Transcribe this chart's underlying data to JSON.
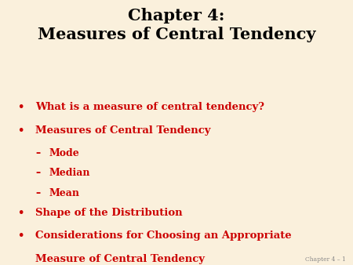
{
  "title_line1": "Chapter 4:",
  "title_line2": "Measures of Central Tendency",
  "title_color": "#000000",
  "title_fontsize": 15,
  "background_color": "#faf0dc",
  "bullet_color": "#cc0000",
  "bullet_fontsize": 9.5,
  "sub_fontsize": 9.0,
  "footer_text": "Chapter 4 – 1",
  "footer_color": "#888888",
  "footer_fontsize": 5.5,
  "bullets": [
    {
      "text": "What is a measure of central tendency?",
      "level": 0
    },
    {
      "text": "Measures of Central Tendency",
      "level": 0
    },
    {
      "text": "Mode",
      "level": 1
    },
    {
      "text": "Median",
      "level": 1
    },
    {
      "text": "Mean",
      "level": 1
    },
    {
      "text": "Shape of the Distribution",
      "level": 0
    },
    {
      "text": "Considerations for Choosing an Appropriate",
      "level": 0,
      "continuation": "Measure of Central Tendency"
    }
  ]
}
